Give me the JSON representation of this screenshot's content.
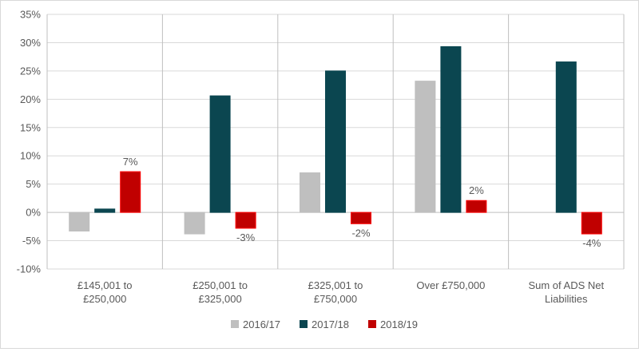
{
  "chart_data": {
    "type": "bar",
    "title": "",
    "xlabel": "",
    "ylabel": "",
    "ylim": [
      -10,
      35
    ],
    "yticks": [
      -10,
      -5,
      0,
      5,
      10,
      15,
      20,
      25,
      30,
      35
    ],
    "ytick_labels": [
      "-10%",
      "-5%",
      "0%",
      "5%",
      "10%",
      "15%",
      "20%",
      "25%",
      "30%",
      "35%"
    ],
    "value_unit": "%",
    "grid": {
      "horizontal": true,
      "vertical_category_separators": true
    },
    "legend_position": "bottom",
    "categories": [
      [
        "£145,001 to",
        "£250,000"
      ],
      [
        "£250,001 to",
        "£325,000"
      ],
      [
        "£325,001 to",
        "£750,000"
      ],
      [
        "Over £750,000"
      ],
      [
        "Sum of ADS Net",
        "Liabilities"
      ]
    ],
    "series": [
      {
        "name": "2016/17",
        "color": "#bfbfbf",
        "values": [
          -3.3,
          -3.8,
          7.0,
          23.2,
          0
        ]
      },
      {
        "name": "2017/18",
        "color": "#0b4650",
        "values": [
          0.6,
          20.6,
          25.0,
          29.3,
          26.6
        ]
      },
      {
        "name": "2018/19",
        "color": "#c00000",
        "values": [
          7.2,
          -2.8,
          -2.0,
          2.1,
          -3.8
        ]
      }
    ],
    "data_labels": [
      {
        "series": 2,
        "category": 0,
        "text": "7%",
        "position": "above"
      },
      {
        "series": 2,
        "category": 1,
        "text": "-3%",
        "position": "below"
      },
      {
        "series": 2,
        "category": 2,
        "text": "-2%",
        "position": "below"
      },
      {
        "series": 2,
        "category": 3,
        "text": "2%",
        "position": "above"
      },
      {
        "series": 2,
        "category": 4,
        "text": "-4%",
        "position": "below"
      }
    ]
  }
}
